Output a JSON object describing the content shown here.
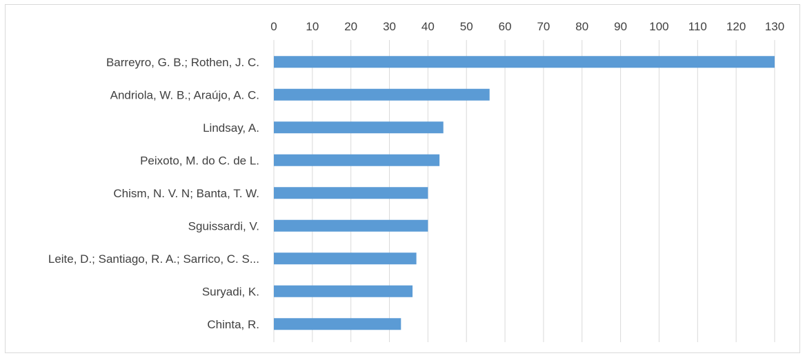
{
  "chart_data": {
    "type": "bar",
    "orientation": "horizontal",
    "title": "",
    "xlabel": "",
    "ylabel": "",
    "xlim": [
      0,
      130
    ],
    "x_ticks": [
      0,
      10,
      20,
      30,
      40,
      50,
      60,
      70,
      80,
      90,
      100,
      110,
      120,
      130
    ],
    "x_axis_position": "top",
    "grid": true,
    "legend": "none",
    "bar_color": "#5b9bd5",
    "categories": [
      "Barreyro, G. B.; Rothen, J. C.",
      "Andriola, W. B.; Araújo, A. C.",
      "Lindsay, A.",
      "Peixoto, M. do C. de L.",
      "Chism, N. V. N; Banta, T. W.",
      "Sguissardi, V.",
      "Leite, D.; Santiago, R. A.; Sarrico, C. S...",
      "Suryadi, K.",
      "Chinta, R."
    ],
    "values": [
      130,
      56,
      44,
      43,
      40,
      40,
      37,
      36,
      33
    ]
  }
}
